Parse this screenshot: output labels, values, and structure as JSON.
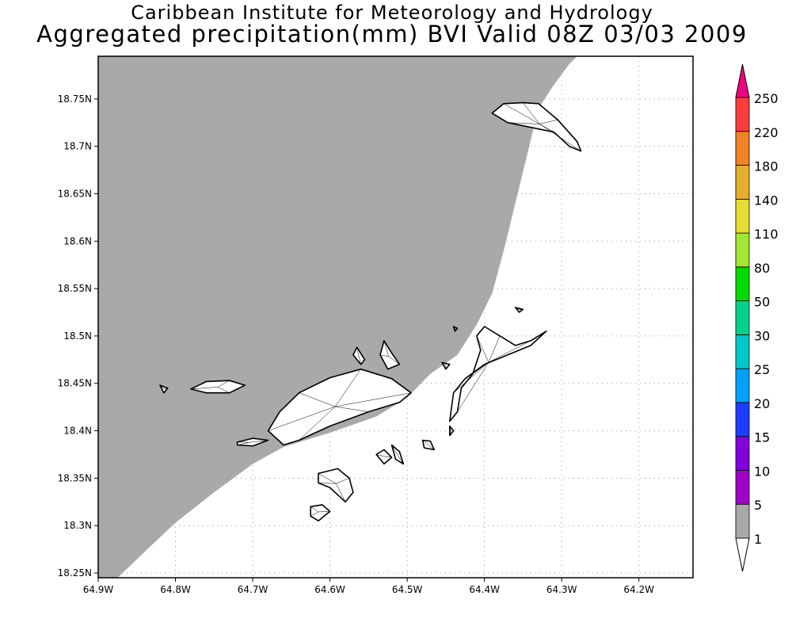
{
  "title_line1": "Caribbean Institute for Meteorology and Hydrology",
  "title_line2": "Aggregated precipitation(mm) BVI Valid 08Z 03/03 2009",
  "map": {
    "lon_range": [
      -64.9,
      -64.13
    ],
    "lat_range": [
      18.245,
      18.795
    ],
    "lat_ticks": [
      {
        "value": 18.75,
        "label": "18.75N"
      },
      {
        "value": 18.7,
        "label": "18.7N"
      },
      {
        "value": 18.65,
        "label": "18.65N"
      },
      {
        "value": 18.6,
        "label": "18.6N"
      },
      {
        "value": 18.55,
        "label": "18.55N"
      },
      {
        "value": 18.5,
        "label": "18.5N"
      },
      {
        "value": 18.45,
        "label": "18.45N"
      },
      {
        "value": 18.4,
        "label": "18.4N"
      },
      {
        "value": 18.35,
        "label": "18.35N"
      },
      {
        "value": 18.3,
        "label": "18.3N"
      },
      {
        "value": 18.25,
        "label": "18.25N"
      }
    ],
    "lon_ticks": [
      {
        "value": -64.9,
        "label": "64.9W"
      },
      {
        "value": -64.8,
        "label": "64.8W"
      },
      {
        "value": -64.7,
        "label": "64.7W"
      },
      {
        "value": -64.6,
        "label": "64.6W"
      },
      {
        "value": -64.5,
        "label": "64.5W"
      },
      {
        "value": -64.4,
        "label": "64.4W"
      },
      {
        "value": -64.3,
        "label": "64.3W"
      },
      {
        "value": -64.2,
        "label": "64.2W"
      }
    ],
    "precip_region": {
      "class": "1-5 mm",
      "color": "#a9a9a9",
      "boundary_lonlat": [
        [
          -64.9,
          18.795
        ],
        [
          -64.28,
          18.795
        ],
        [
          -64.29,
          18.787
        ],
        [
          -64.31,
          18.765
        ],
        [
          -64.33,
          18.74
        ],
        [
          -64.345,
          18.69
        ],
        [
          -64.36,
          18.64
        ],
        [
          -64.375,
          18.59
        ],
        [
          -64.39,
          18.545
        ],
        [
          -64.41,
          18.512
        ],
        [
          -64.435,
          18.48
        ],
        [
          -64.47,
          18.46
        ],
        [
          -64.5,
          18.435
        ],
        [
          -64.54,
          18.415
        ],
        [
          -64.6,
          18.398
        ],
        [
          -64.66,
          18.383
        ],
        [
          -64.7,
          18.365
        ],
        [
          -64.75,
          18.335
        ],
        [
          -64.8,
          18.303
        ],
        [
          -64.83,
          18.28
        ],
        [
          -64.875,
          18.245
        ],
        [
          -64.9,
          18.245
        ]
      ]
    },
    "islands": [
      {
        "name": "",
        "lonlat": [
          [
            -64.495,
            18.44
          ],
          [
            -64.52,
            18.455
          ],
          [
            -64.56,
            18.465
          ],
          [
            -64.6,
            18.456
          ],
          [
            -64.64,
            18.44
          ],
          [
            -64.665,
            18.42
          ],
          [
            -64.68,
            18.4
          ],
          [
            -64.66,
            18.385
          ],
          [
            -64.64,
            18.39
          ],
          [
            -64.6,
            18.405
          ],
          [
            -64.55,
            18.42
          ],
          [
            -64.51,
            18.43
          ]
        ]
      },
      {
        "name": "",
        "lonlat": [
          [
            -64.72,
            18.388
          ],
          [
            -64.7,
            18.392
          ],
          [
            -64.68,
            18.39
          ],
          [
            -64.7,
            18.384
          ],
          [
            -64.72,
            18.385
          ]
        ]
      },
      {
        "name": "",
        "lonlat": [
          [
            -64.78,
            18.444
          ],
          [
            -64.76,
            18.452
          ],
          [
            -64.73,
            18.453
          ],
          [
            -64.71,
            18.448
          ],
          [
            -64.73,
            18.44
          ],
          [
            -64.76,
            18.44
          ]
        ]
      },
      {
        "name": "",
        "lonlat": [
          [
            -64.53,
            18.495
          ],
          [
            -64.52,
            18.482
          ],
          [
            -64.51,
            18.47
          ],
          [
            -64.525,
            18.465
          ],
          [
            -64.535,
            18.48
          ]
        ]
      },
      {
        "name": "",
        "lonlat": [
          [
            -64.565,
            18.488
          ],
          [
            -64.555,
            18.475
          ],
          [
            -64.56,
            18.47
          ],
          [
            -64.57,
            18.48
          ]
        ]
      },
      {
        "name": "",
        "lonlat": [
          [
            -64.82,
            18.448
          ],
          [
            -64.815,
            18.44
          ],
          [
            -64.81,
            18.445
          ]
        ]
      },
      {
        "name": "",
        "lonlat": [
          [
            -64.615,
            18.355
          ],
          [
            -64.59,
            18.36
          ],
          [
            -64.575,
            18.35
          ],
          [
            -64.57,
            18.335
          ],
          [
            -64.58,
            18.325
          ],
          [
            -64.6,
            18.34
          ],
          [
            -64.615,
            18.345
          ]
        ]
      },
      {
        "name": "",
        "lonlat": [
          [
            -64.625,
            18.32
          ],
          [
            -64.61,
            18.322
          ],
          [
            -64.6,
            18.315
          ],
          [
            -64.615,
            18.305
          ],
          [
            -64.625,
            18.31
          ]
        ]
      },
      {
        "name": "",
        "lonlat": [
          [
            -64.54,
            18.375
          ],
          [
            -64.53,
            18.38
          ],
          [
            -64.52,
            18.372
          ],
          [
            -64.53,
            18.365
          ]
        ]
      },
      {
        "name": "",
        "lonlat": [
          [
            -64.52,
            18.385
          ],
          [
            -64.51,
            18.378
          ],
          [
            -64.505,
            18.365
          ],
          [
            -64.515,
            18.37
          ]
        ]
      },
      {
        "name": "",
        "lonlat": [
          [
            -64.48,
            18.39
          ],
          [
            -64.47,
            18.389
          ],
          [
            -64.465,
            18.38
          ],
          [
            -64.478,
            18.382
          ]
        ]
      },
      {
        "name": "",
        "lonlat": [
          [
            -64.41,
            18.5
          ],
          [
            -64.4,
            18.51
          ],
          [
            -64.38,
            18.5
          ],
          [
            -64.36,
            18.49
          ],
          [
            -64.34,
            18.495
          ],
          [
            -64.32,
            18.505
          ],
          [
            -64.34,
            18.49
          ],
          [
            -64.37,
            18.48
          ],
          [
            -64.4,
            18.47
          ],
          [
            -64.425,
            18.455
          ],
          [
            -64.44,
            18.44
          ],
          [
            -64.445,
            18.41
          ],
          [
            -64.435,
            18.42
          ],
          [
            -64.43,
            18.445
          ],
          [
            -64.415,
            18.46
          ],
          [
            -64.405,
            18.485
          ]
        ]
      },
      {
        "name": "",
        "lonlat": [
          [
            -64.35,
            18.746
          ],
          [
            -64.33,
            18.745
          ],
          [
            -64.305,
            18.728
          ],
          [
            -64.28,
            18.705
          ],
          [
            -64.275,
            18.695
          ],
          [
            -64.29,
            18.7
          ],
          [
            -64.31,
            18.715
          ],
          [
            -64.34,
            18.72
          ],
          [
            -64.37,
            18.725
          ],
          [
            -64.39,
            18.735
          ],
          [
            -64.375,
            18.745
          ]
        ]
      },
      {
        "name": "",
        "lonlat": [
          [
            -64.36,
            18.53
          ],
          [
            -64.355,
            18.525
          ],
          [
            -64.35,
            18.528
          ]
        ]
      },
      {
        "name": "",
        "lonlat": [
          [
            -64.455,
            18.472
          ],
          [
            -64.445,
            18.47
          ],
          [
            -64.45,
            18.465
          ]
        ]
      },
      {
        "name": "",
        "lonlat": [
          [
            -64.44,
            18.51
          ],
          [
            -64.435,
            18.508
          ],
          [
            -64.438,
            18.505
          ]
        ]
      },
      {
        "name": "",
        "lonlat": [
          [
            -64.445,
            18.405
          ],
          [
            -64.44,
            18.4
          ],
          [
            -64.445,
            18.395
          ]
        ]
      }
    ]
  },
  "colorbar": {
    "bins": [
      {
        "label": "1",
        "color": "#ffffff"
      },
      {
        "label": "5",
        "color": "#a9a9a9"
      },
      {
        "label": "10",
        "color": "#a000c8"
      },
      {
        "label": "15",
        "color": "#8200dc"
      },
      {
        "label": "20",
        "color": "#1e3cff"
      },
      {
        "label": "25",
        "color": "#00a0ff"
      },
      {
        "label": "30",
        "color": "#00c8c8"
      },
      {
        "label": "50",
        "color": "#00d28c"
      },
      {
        "label": "80",
        "color": "#00dc00"
      },
      {
        "label": "110",
        "color": "#a0e632"
      },
      {
        "label": "140",
        "color": "#e6dc32"
      },
      {
        "label": "180",
        "color": "#e6af2d"
      },
      {
        "label": "220",
        "color": "#f08228"
      },
      {
        "label": "250",
        "color": "#fa3c3c"
      }
    ],
    "top_color": "#f00082"
  }
}
